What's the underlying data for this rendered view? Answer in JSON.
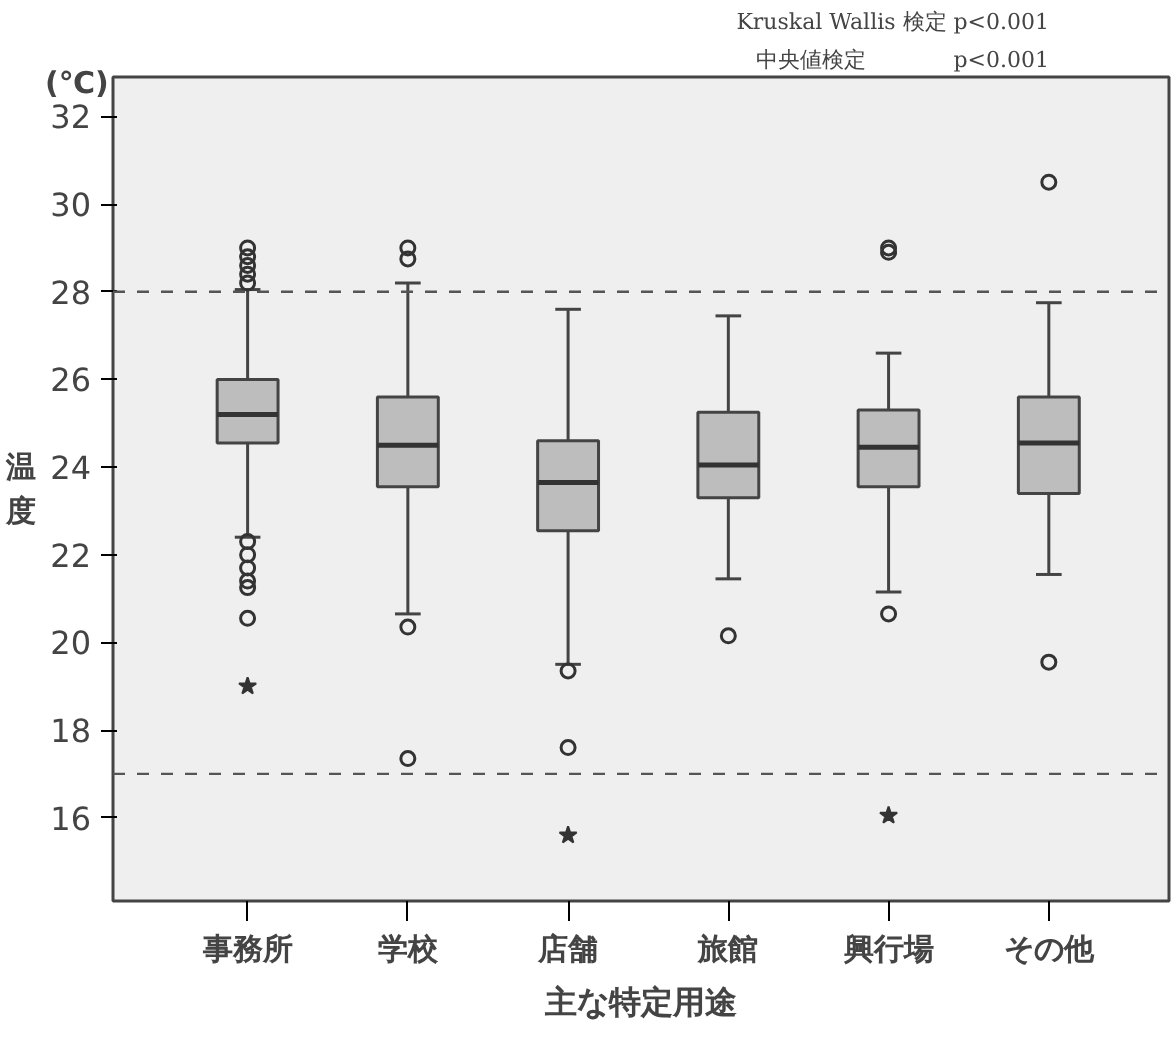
{
  "chart_data": {
    "type": "box",
    "categories": [
      "事務所",
      "学校",
      "店舗",
      "旅館",
      "興行場",
      "その他"
    ],
    "xlabel": "主な特定用途",
    "ylabel": "温度",
    "annotations": [
      "(℃)",
      "Kruskal Wallis 検定 p<0.001",
      "中央値検定　　　　p<0.001"
    ],
    "series": [
      {
        "type": "box",
        "color": "#bdbdbd",
        "boxes": [
          {
            "low": 22.4,
            "q1": 24.55,
            "median": 25.2,
            "q3": 26.0,
            "high": 28.05,
            "outliers": [
              29.0,
              28.8,
              28.6,
              28.4,
              28.2,
              22.3,
              22.0,
              21.7,
              21.4,
              21.25,
              20.55
            ]
          },
          {
            "low": 20.65,
            "q1": 23.55,
            "median": 24.5,
            "q3": 25.6,
            "high": 28.2,
            "outliers": [
              29.0,
              28.75,
              20.35,
              17.35
            ]
          },
          {
            "low": 19.5,
            "q1": 22.55,
            "median": 23.65,
            "q3": 24.6,
            "high": 27.6,
            "outliers": [
              19.35,
              17.6
            ]
          },
          {
            "low": 21.45,
            "q1": 23.3,
            "median": 24.05,
            "q3": 25.25,
            "high": 27.45,
            "outliers": [
              20.15
            ]
          },
          {
            "low": 21.15,
            "q1": 23.55,
            "median": 24.45,
            "q3": 25.3,
            "high": 26.6,
            "outliers": [
              29.0,
              28.9,
              20.65
            ]
          },
          {
            "low": 21.55,
            "q1": 23.4,
            "median": 24.55,
            "q3": 25.6,
            "high": 27.75,
            "outliers": [
              30.5,
              19.55
            ]
          }
        ]
      },
      {
        "type": "scatter",
        "marker": "star",
        "color": "#333333",
        "x": [
          "事務所",
          "店舗",
          "興行場"
        ],
        "values": [
          19.0,
          15.6,
          16.05
        ]
      }
    ],
    "ylim": [
      14.1,
      32.9
    ],
    "yticks": [
      16,
      18,
      20,
      22,
      24,
      26,
      28,
      30,
      32
    ],
    "ref_lines": [
      {
        "axis": "y",
        "value": 28,
        "color": "#555555",
        "line_style": "dashed"
      },
      {
        "axis": "y",
        "value": 17,
        "color": "#555555",
        "line_style": "dashed"
      }
    ],
    "grid": false
  }
}
